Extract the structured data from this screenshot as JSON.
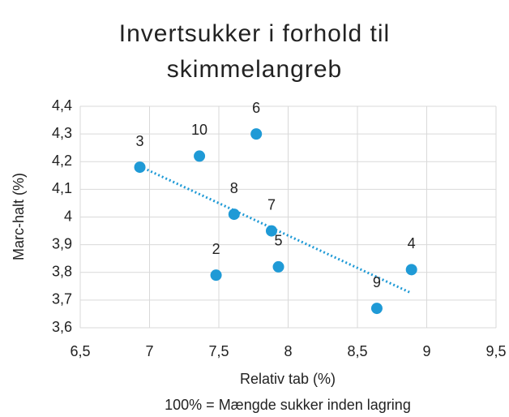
{
  "chart_data": {
    "type": "scatter",
    "title": "Invertsukker i forhold til skimmelangreb",
    "xlabel": "Relativ tab (%)",
    "annotation": "100% = Mængde sukker inden lagring",
    "ylabel": "Marc-halt (%)",
    "series": [
      {
        "color": "#1f9ad6",
        "x": [
          6.93,
          7.36,
          7.77,
          7.61,
          7.88,
          7.48,
          7.93,
          8.89,
          8.64
        ],
        "values": [
          4.18,
          4.22,
          4.3,
          4.01,
          3.95,
          3.79,
          3.82,
          3.81,
          3.67
        ],
        "labels": [
          "3",
          "10",
          "6",
          "8",
          "7",
          "2",
          "5",
          "4",
          "9"
        ]
      }
    ],
    "trendline": "linear",
    "xlim": [
      6.5,
      9.5
    ],
    "xticks": [
      {
        "value": 6.5,
        "label": "6,5"
      },
      7,
      {
        "value": 7.5,
        "label": "7,5"
      },
      8,
      {
        "value": 8.5,
        "label": "8,5"
      },
      9,
      {
        "value": 9.5,
        "label": "9,5"
      }
    ],
    "ylim": [
      3.6,
      4.4
    ],
    "yticks": [
      {
        "value": 3.6,
        "label": "3,6"
      },
      {
        "value": 3.7,
        "label": "3,7"
      },
      {
        "value": 3.8,
        "label": "3,8"
      },
      {
        "value": 3.9,
        "label": "3,9"
      },
      4,
      {
        "value": 4.1,
        "label": "4,1"
      },
      {
        "value": 4.2,
        "label": "4,2"
      },
      {
        "value": 4.3,
        "label": "4,3"
      },
      {
        "value": 4.4,
        "label": "4,4"
      }
    ],
    "grid": true
  }
}
